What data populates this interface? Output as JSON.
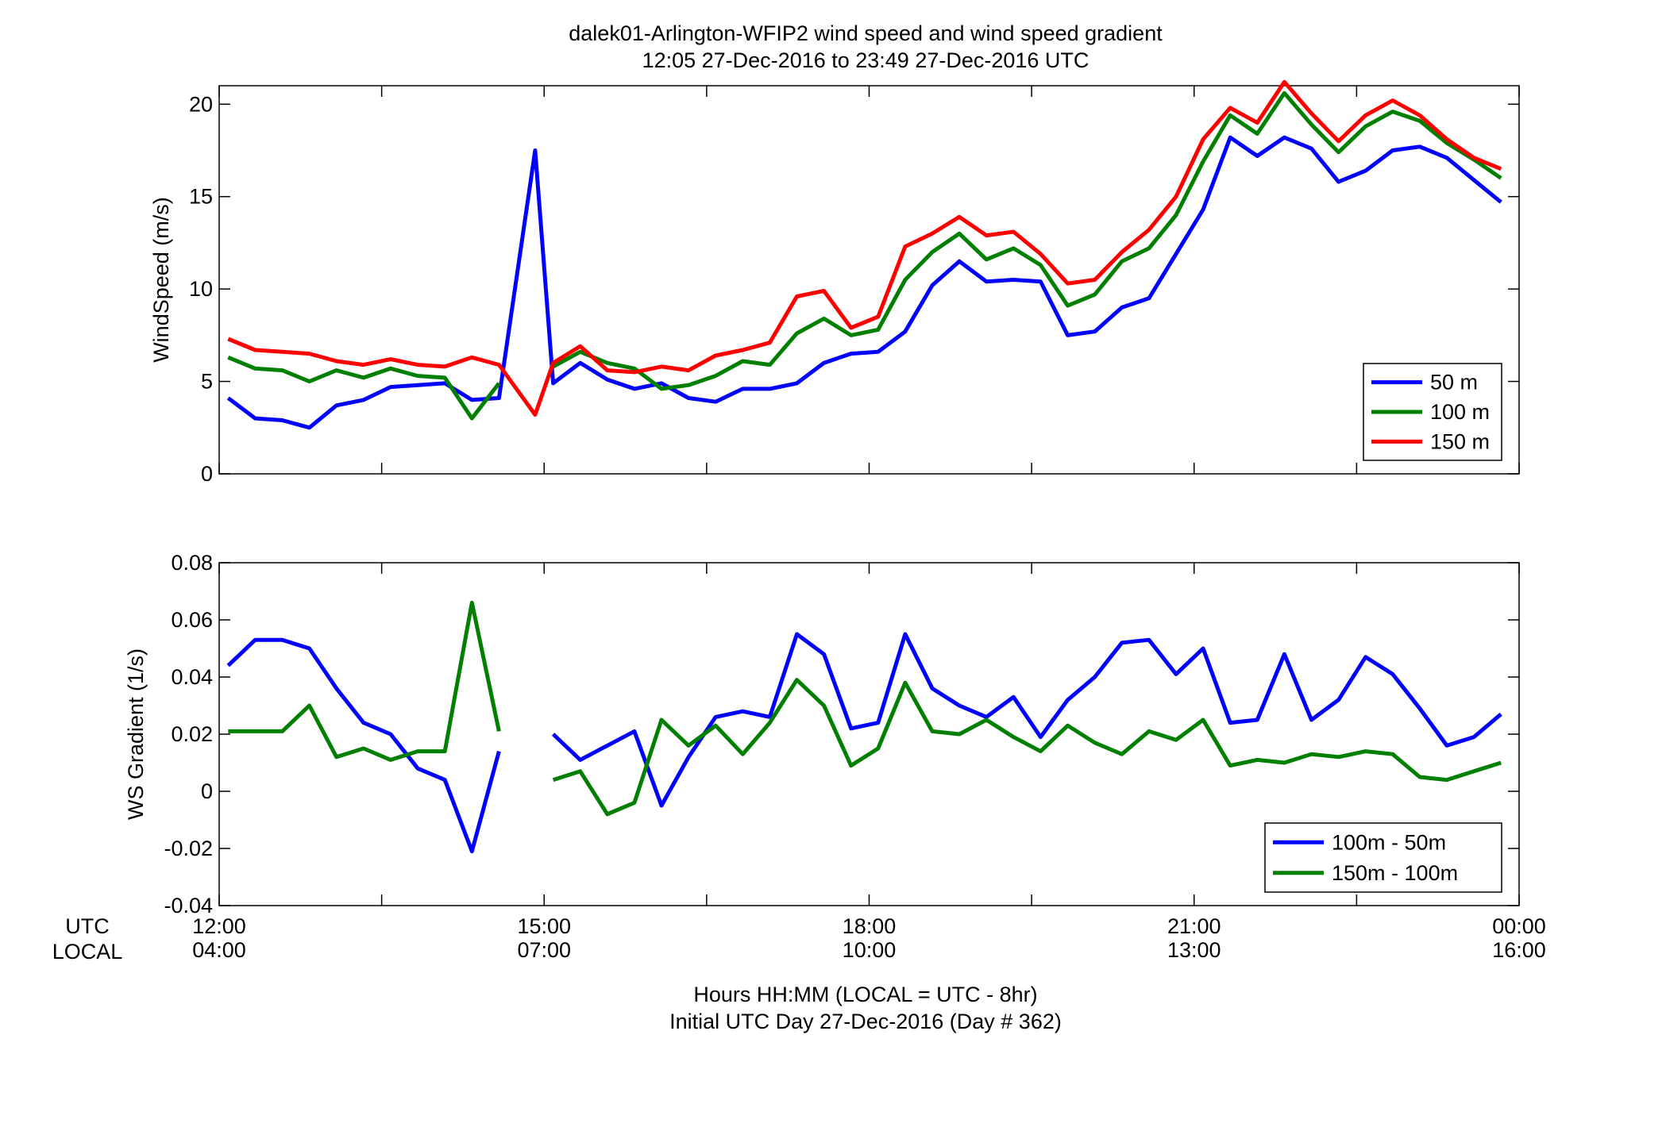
{
  "title": {
    "line1": "dalek01-Arlington-WFIP2  wind speed and wind speed gradient",
    "line2": "12:05 27-Dec-2016 to 23:49 27-Dec-2016  UTC"
  },
  "xaxis": {
    "row_utc_label": "UTC",
    "row_local_label": "LOCAL",
    "utc_ticks": [
      "12:00",
      "15:00",
      "18:00",
      "21:00",
      "00:00"
    ],
    "local_ticks": [
      "04:00",
      "07:00",
      "10:00",
      "13:00",
      "16:00"
    ],
    "label_line1": "Hours HH:MM  (LOCAL = UTC - 8hr)",
    "label_line2": "Initial UTC Day 27-Dec-2016 (Day # 362)"
  },
  "colors": {
    "blue": "#0000ff",
    "green": "#007f00",
    "red": "#ff0000"
  },
  "chart_data": [
    {
      "type": "line",
      "ylabel": "WindSpeed (m/s)",
      "xlim": [
        12.0,
        24.0
      ],
      "ylim": [
        0,
        21
      ],
      "yticks": [
        0,
        5,
        10,
        15,
        20
      ],
      "xticks": [
        12,
        13.5,
        15,
        16.5,
        18,
        19.5,
        21,
        22.5,
        24
      ],
      "legend_position": "bottom-right",
      "x": [
        12.083,
        12.333,
        12.583,
        12.833,
        13.083,
        13.333,
        13.583,
        13.833,
        14.083,
        14.333,
        14.583,
        14.917,
        15.083,
        15.333,
        15.583,
        15.833,
        16.083,
        16.333,
        16.583,
        16.833,
        17.083,
        17.333,
        17.583,
        17.833,
        18.083,
        18.333,
        18.583,
        18.833,
        19.083,
        19.333,
        19.583,
        19.833,
        20.083,
        20.333,
        20.583,
        20.833,
        21.083,
        21.333,
        21.583,
        21.833,
        22.083,
        22.333,
        22.583,
        22.833,
        23.083,
        23.333,
        23.583,
        23.833
      ],
      "series": [
        {
          "name": "50 m",
          "color": "#0000ff",
          "values": [
            4.1,
            3.0,
            2.9,
            2.5,
            3.7,
            4.0,
            4.7,
            4.8,
            4.9,
            4.0,
            4.1,
            17.5,
            4.9,
            6.0,
            5.1,
            4.6,
            4.9,
            4.1,
            3.9,
            4.6,
            4.6,
            4.9,
            6.0,
            6.5,
            6.6,
            7.7,
            10.2,
            11.5,
            10.4,
            10.5,
            10.4,
            7.5,
            7.7,
            9.0,
            9.5,
            11.9,
            14.3,
            18.2,
            17.2,
            18.2,
            17.6,
            15.8,
            16.4,
            17.5,
            17.7,
            17.1,
            15.9,
            14.7
          ]
        },
        {
          "name": "100 m",
          "color": "#007f00",
          "values": [
            6.3,
            5.7,
            5.6,
            5.0,
            5.6,
            5.2,
            5.7,
            5.3,
            5.2,
            3.0,
            4.9,
            null,
            5.8,
            6.6,
            6.0,
            5.7,
            4.6,
            4.8,
            5.3,
            6.1,
            5.9,
            7.6,
            8.4,
            7.5,
            7.8,
            10.5,
            12.0,
            13.0,
            11.6,
            12.2,
            11.3,
            9.1,
            9.7,
            11.5,
            12.2,
            14.0,
            16.9,
            19.4,
            18.4,
            20.6,
            18.9,
            17.4,
            18.8,
            19.6,
            19.1,
            17.9,
            17.0,
            16.0
          ]
        },
        {
          "name": "150 m",
          "color": "#ff0000",
          "values": [
            7.3,
            6.7,
            6.6,
            6.5,
            6.1,
            5.9,
            6.2,
            5.9,
            5.8,
            6.3,
            5.9,
            3.2,
            6.0,
            6.9,
            5.6,
            5.5,
            5.8,
            5.6,
            6.4,
            6.7,
            7.1,
            9.6,
            9.9,
            7.9,
            8.5,
            12.3,
            13.0,
            13.9,
            12.9,
            13.1,
            11.9,
            10.3,
            10.5,
            12.0,
            13.2,
            15.0,
            18.1,
            19.8,
            19.0,
            21.2,
            19.5,
            18.0,
            19.4,
            20.2,
            19.4,
            18.1,
            17.1,
            16.5
          ]
        }
      ]
    },
    {
      "type": "line",
      "ylabel": "WS Gradient (1/s)",
      "xlim": [
        12.0,
        24.0
      ],
      "ylim": [
        -0.04,
        0.08
      ],
      "yticks": [
        -0.04,
        -0.02,
        0,
        0.02,
        0.04,
        0.06,
        0.08
      ],
      "ytick_labels": [
        "-0.04",
        "-0.02",
        "0",
        "0.02",
        "0.04",
        "0.06",
        "0.08"
      ],
      "xticks": [
        12,
        13.5,
        15,
        16.5,
        18,
        19.5,
        21,
        22.5,
        24
      ],
      "legend_position": "bottom-right",
      "x": [
        12.083,
        12.333,
        12.583,
        12.833,
        13.083,
        13.333,
        13.583,
        13.833,
        14.083,
        14.333,
        14.583,
        14.917,
        15.083,
        15.333,
        15.583,
        15.833,
        16.083,
        16.333,
        16.583,
        16.833,
        17.083,
        17.333,
        17.583,
        17.833,
        18.083,
        18.333,
        18.583,
        18.833,
        19.083,
        19.333,
        19.583,
        19.833,
        20.083,
        20.333,
        20.583,
        20.833,
        21.083,
        21.333,
        21.583,
        21.833,
        22.083,
        22.333,
        22.583,
        22.833,
        23.083,
        23.333,
        23.583,
        23.833
      ],
      "series": [
        {
          "name": "100m - 50m",
          "color": "#0000ff",
          "values": [
            0.044,
            0.053,
            0.053,
            0.05,
            0.036,
            0.024,
            0.02,
            0.008,
            0.004,
            -0.021,
            0.014,
            null,
            0.02,
            0.011,
            0.016,
            0.021,
            -0.005,
            0.012,
            0.026,
            0.028,
            0.026,
            0.055,
            0.048,
            0.022,
            0.024,
            0.055,
            0.036,
            0.03,
            0.026,
            0.033,
            0.019,
            0.032,
            0.04,
            0.052,
            0.053,
            0.041,
            0.05,
            0.024,
            0.025,
            0.048,
            0.025,
            0.032,
            0.047,
            0.041,
            0.029,
            0.016,
            0.019,
            0.027
          ]
        },
        {
          "name": "150m - 100m",
          "color": "#007f00",
          "values": [
            0.021,
            0.021,
            0.021,
            0.03,
            0.012,
            0.015,
            0.011,
            0.014,
            0.014,
            0.066,
            0.021,
            null,
            0.004,
            0.007,
            -0.008,
            -0.004,
            0.025,
            0.016,
            0.023,
            0.013,
            0.024,
            0.039,
            0.03,
            0.009,
            0.015,
            0.038,
            0.021,
            0.02,
            0.025,
            0.019,
            0.014,
            0.023,
            0.017,
            0.013,
            0.021,
            0.018,
            0.025,
            0.009,
            0.011,
            0.01,
            0.013,
            0.012,
            0.014,
            0.013,
            0.005,
            0.004,
            0.007,
            0.01
          ]
        }
      ]
    }
  ]
}
